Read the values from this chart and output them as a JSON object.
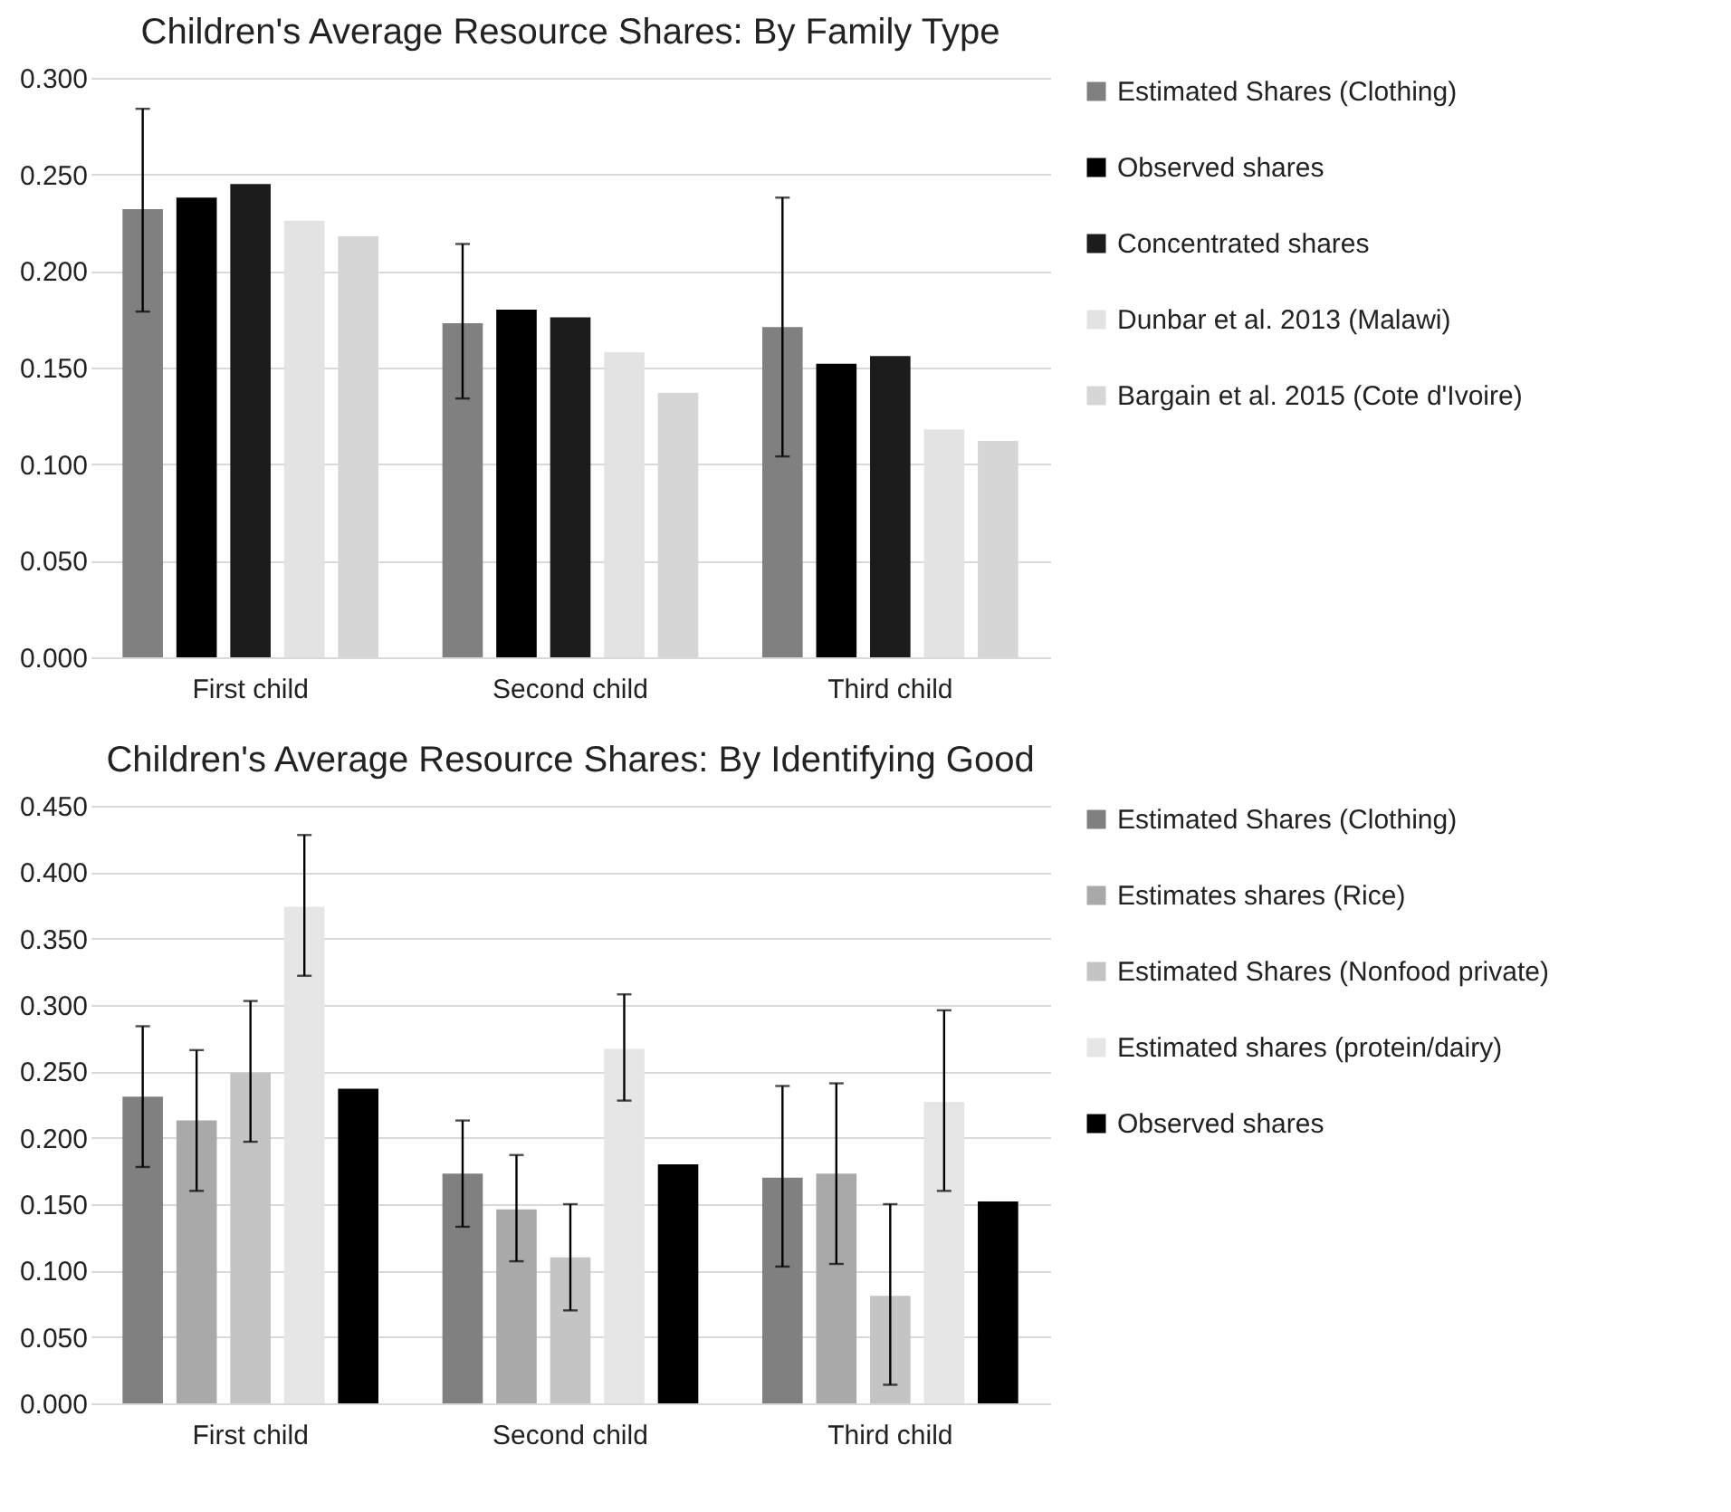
{
  "chart_data": [
    {
      "type": "bar",
      "title": "Children's Average Resource Shares: By Family Type",
      "categories": [
        "First child",
        "Second child",
        "Third child"
      ],
      "ylim": [
        0,
        0.3
      ],
      "yticks": [
        {
          "value": 0,
          "label": "0.000"
        },
        {
          "value": 0.05,
          "label": "0.050"
        },
        {
          "value": 0.1,
          "label": "0.100"
        },
        {
          "value": 0.15,
          "label": "0.150"
        },
        {
          "value": 0.2,
          "label": "0.200"
        },
        {
          "value": 0.25,
          "label": "0.250"
        },
        {
          "value": 0.3,
          "label": "0.300"
        }
      ],
      "grid": "y",
      "legend": "right",
      "series": [
        {
          "name": "Estimated Shares (Clothing)",
          "color": "#808080",
          "values": [
            0.232,
            0.173,
            0.171
          ],
          "errors": [
            [
              0.179,
              0.284
            ],
            [
              0.134,
              0.214
            ],
            [
              0.104,
              0.238
            ]
          ]
        },
        {
          "name": "Observed shares",
          "color": "#000000",
          "values": [
            0.238,
            0.18,
            0.152
          ]
        },
        {
          "name": "Concentrated shares",
          "color": "#1c1c1c",
          "values": [
            0.245,
            0.176,
            0.156
          ]
        },
        {
          "name": "Dunbar et al. 2013 (Malawi)",
          "color": "#e3e3e3",
          "values": [
            0.226,
            0.158,
            0.118
          ]
        },
        {
          "name": "Bargain et al. 2015 (Cote d'Ivoire)",
          "color": "#d6d6d6",
          "values": [
            0.218,
            0.137,
            0.112
          ]
        }
      ]
    },
    {
      "type": "bar",
      "title": "Children's Average Resource Shares: By Identifying Good",
      "categories": [
        "First child",
        "Second child",
        "Third child"
      ],
      "ylim": [
        0,
        0.45
      ],
      "yticks": [
        {
          "value": 0,
          "label": "0.000"
        },
        {
          "value": 0.05,
          "label": "0.050"
        },
        {
          "value": 0.1,
          "label": "0.100"
        },
        {
          "value": 0.15,
          "label": "0.150"
        },
        {
          "value": 0.2,
          "label": "0.200"
        },
        {
          "value": 0.25,
          "label": "0.250"
        },
        {
          "value": 0.3,
          "label": "0.300"
        },
        {
          "value": 0.35,
          "label": "0.350"
        },
        {
          "value": 0.4,
          "label": "0.400"
        },
        {
          "value": 0.45,
          "label": "0.450"
        }
      ],
      "grid": "y",
      "legend": "right",
      "series": [
        {
          "name": "Estimated Shares (Clothing)",
          "color": "#808080",
          "values": [
            0.231,
            0.173,
            0.17
          ],
          "errors": [
            [
              0.178,
              0.284
            ],
            [
              0.133,
              0.213
            ],
            [
              0.103,
              0.239
            ]
          ]
        },
        {
          "name": "Estimates shares (Rice)",
          "color": "#a9a9a9",
          "values": [
            0.213,
            0.146,
            0.173
          ],
          "errors": [
            [
              0.16,
              0.266
            ],
            [
              0.107,
              0.187
            ],
            [
              0.105,
              0.241
            ]
          ]
        },
        {
          "name": "Estimated Shares (Nonfood private)",
          "color": "#c4c4c4",
          "values": [
            0.249,
            0.11,
            0.081
          ],
          "errors": [
            [
              0.197,
              0.303
            ],
            [
              0.07,
              0.15
            ],
            [
              0.014,
              0.15
            ]
          ]
        },
        {
          "name": "Estimated shares (protein/dairy)",
          "color": "#e6e6e6",
          "values": [
            0.374,
            0.267,
            0.227
          ],
          "errors": [
            [
              0.322,
              0.428
            ],
            [
              0.228,
              0.308
            ],
            [
              0.16,
              0.296
            ]
          ]
        },
        {
          "name": "Observed shares",
          "color": "#000000",
          "values": [
            0.237,
            0.18,
            0.152
          ]
        }
      ]
    }
  ]
}
